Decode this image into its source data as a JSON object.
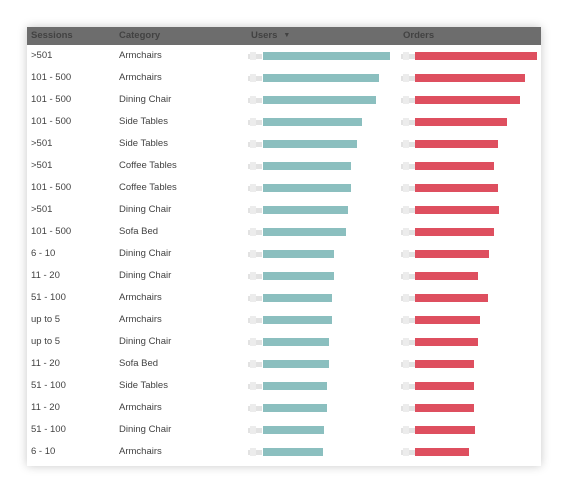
{
  "table": {
    "columns": {
      "sessions": "Sessions",
      "category": "Category",
      "users": "Users",
      "orders": "Orders"
    },
    "sort": {
      "column": "users",
      "direction": "descending"
    },
    "colors": {
      "users_bar": "#8bbfbf",
      "orders_bar": "#de4f5f",
      "header_bg": "#6d6d6d"
    },
    "users_max": 1.0,
    "orders_max": 1.0,
    "rows": [
      {
        "sessions": ">501",
        "category": "Armchairs",
        "users": 1.0,
        "orders": 1.0
      },
      {
        "sessions": "101 - 500",
        "category": "Armchairs",
        "users": 0.91,
        "orders": 0.9
      },
      {
        "sessions": "101 - 500",
        "category": "Dining Chair",
        "users": 0.89,
        "orders": 0.86
      },
      {
        "sessions": "101 - 500",
        "category": "Side Tables",
        "users": 0.78,
        "orders": 0.75
      },
      {
        "sessions": ">501",
        "category": "Side Tables",
        "users": 0.74,
        "orders": 0.68
      },
      {
        "sessions": ">501",
        "category": "Coffee Tables",
        "users": 0.69,
        "orders": 0.65
      },
      {
        "sessions": "101 - 500",
        "category": "Coffee Tables",
        "users": 0.69,
        "orders": 0.68
      },
      {
        "sessions": ">501",
        "category": "Dining Chair",
        "users": 0.67,
        "orders": 0.69
      },
      {
        "sessions": "101 - 500",
        "category": "Sofa Bed",
        "users": 0.65,
        "orders": 0.65
      },
      {
        "sessions": "6 - 10",
        "category": "Dining Chair",
        "users": 0.56,
        "orders": 0.61
      },
      {
        "sessions": "11 - 20",
        "category": "Dining Chair",
        "users": 0.56,
        "orders": 0.52
      },
      {
        "sessions": "51 - 100",
        "category": "Armchairs",
        "users": 0.54,
        "orders": 0.6
      },
      {
        "sessions": "up to 5",
        "category": "Armchairs",
        "users": 0.54,
        "orders": 0.53
      },
      {
        "sessions": "up to 5",
        "category": "Dining Chair",
        "users": 0.52,
        "orders": 0.52
      },
      {
        "sessions": "11 - 20",
        "category": "Sofa Bed",
        "users": 0.52,
        "orders": 0.48
      },
      {
        "sessions": "51 - 100",
        "category": "Side Tables",
        "users": 0.5,
        "orders": 0.48
      },
      {
        "sessions": "11 - 20",
        "category": "Armchairs",
        "users": 0.5,
        "orders": 0.48
      },
      {
        "sessions": "51 - 100",
        "category": "Dining Chair",
        "users": 0.48,
        "orders": 0.49
      },
      {
        "sessions": "6 - 10",
        "category": "Armchairs",
        "users": 0.47,
        "orders": 0.44
      }
    ]
  }
}
